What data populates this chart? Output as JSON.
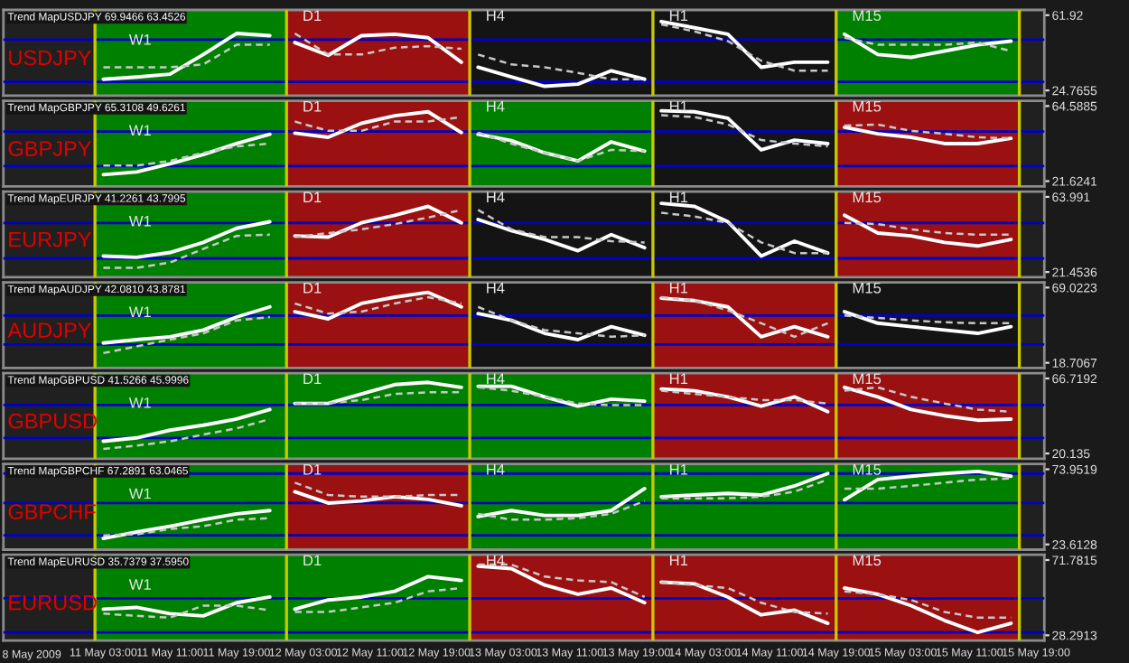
{
  "chart_data": [
    {
      "type": "line",
      "title": "USDJPY",
      "subtitle": "Trend MapUSDJPY 69.9466 63.4526",
      "tick_labels": "y",
      "x": [
        "2009-05-11T03:00",
        "2009-05-11T07:00",
        "2009-05-11T11:00",
        "2009-05-11T15:00",
        "2009-05-11T19:00",
        "2009-05-11T23:00",
        "2009-05-12T01:00",
        "2009-05-12T02:00",
        "2009-05-12T06:00",
        "2009-05-12T10:00",
        "2009-05-12T14:00",
        "2009-05-12T18:00",
        "2009-05-12T22:00",
        "2009-05-12T23:00",
        "2009-05-13T00:00",
        "2009-05-13T04:00",
        "2009-05-13T08:00",
        "2009-05-13T12:00",
        "2009-05-13T16:00",
        "2009-05-13T20:00",
        "2009-05-13T21:00",
        "2009-05-13T22:00",
        "2009-05-14T02:00",
        "2009-05-14T06:00",
        "2009-05-14T10:00",
        "2009-05-14T14:00",
        "2009-05-14T18:00",
        "2009-05-14T19:00",
        "2009-05-14T20:00",
        "2009-05-15T00:00",
        "2009-05-15T04:00",
        "2009-05-15T08:00",
        "2009-05-15T12:00",
        "2009-05-15T16:00"
      ],
      "xlim": [
        "2009-05-10T15:00",
        "2009-05-15T20:00"
      ],
      "ylim": [
        22.2,
        64.5
      ],
      "yticks": [
        24.7655,
        61.92
      ],
      "series": [
        {
          "color": "#ffffff",
          "line_style": "solid",
          "values": [
            30.3,
            31.4,
            32.8,
            42.5,
            52.9,
            51.8,
            null,
            48.4,
            42.1,
            51.8,
            52.5,
            50.8,
            38.7,
            null,
            36.2,
            31.4,
            26.8,
            27.9,
            34.5,
            30.3,
            null,
            58.8,
            55.7,
            52.5,
            36.2,
            38.7,
            38.7,
            null,
            52.5,
            42.5,
            41.1,
            44.2,
            47.3,
            49.1
          ]
        },
        {
          "color": "#c8c8c8",
          "line_style": "dashed",
          "values": [
            36.2,
            36.2,
            36.2,
            37.6,
            47.3,
            47.3,
            null,
            52.9,
            42.5,
            42.5,
            45.9,
            46.6,
            45.3,
            null,
            42.5,
            37.6,
            36.2,
            33.4,
            30.3,
            30.3,
            null,
            57.4,
            53.9,
            49.1,
            39.4,
            34.5,
            34.5,
            null,
            50.8,
            47.3,
            47.3,
            47.3,
            48.4,
            44.2
          ]
        }
      ],
      "bands": [
        {
          "axis": "x",
          "from": "2009-05-11T02:00",
          "to": "2009-05-12T01:00",
          "label": "W1",
          "color": "#008000"
        },
        {
          "axis": "x",
          "from": "2009-05-12T01:00",
          "to": "2009-05-12T23:00",
          "label": "D1",
          "color": "#9b1010"
        },
        {
          "axis": "x",
          "from": "2009-05-12T23:00",
          "to": "2009-05-13T21:00",
          "label": "H4",
          "color": "#141414"
        },
        {
          "axis": "x",
          "from": "2009-05-13T21:00",
          "to": "2009-05-14T19:00",
          "label": "H1",
          "color": "#141414"
        },
        {
          "axis": "x",
          "from": "2009-05-14T19:00",
          "to": "2009-05-15T17:00",
          "label": "M15",
          "color": "#008000"
        }
      ],
      "ref_lines": [
        {
          "axis": "y",
          "value": 49.8,
          "color": "#0000c8"
        },
        {
          "axis": "y",
          "value": 29.0,
          "color": "#0000c8"
        },
        {
          "axis": "x",
          "value": "2009-05-11T02:00",
          "color": "#c8c800"
        },
        {
          "axis": "x",
          "value": "2009-05-12T01:00",
          "color": "#c8c800"
        },
        {
          "axis": "x",
          "value": "2009-05-12T23:00",
          "color": "#c8c800"
        },
        {
          "axis": "x",
          "value": "2009-05-13T21:00",
          "color": "#c8c800"
        },
        {
          "axis": "x",
          "value": "2009-05-14T19:00",
          "color": "#c8c800"
        },
        {
          "axis": "x",
          "value": "2009-05-15T17:00",
          "color": "#c8c800"
        }
      ]
    },
    {
      "type": "line",
      "title": "GBPJPY",
      "subtitle": "Trend MapGBPJPY 65.3108 49.6261",
      "tick_labels": "y",
      "x": [
        "2009-05-11T03:00",
        "2009-05-11T07:00",
        "2009-05-11T11:00",
        "2009-05-11T15:00",
        "2009-05-11T19:00",
        "2009-05-11T23:00",
        "2009-05-12T01:00",
        "2009-05-12T02:00",
        "2009-05-12T06:00",
        "2009-05-12T10:00",
        "2009-05-12T14:00",
        "2009-05-12T18:00",
        "2009-05-12T22:00",
        "2009-05-12T23:00",
        "2009-05-13T00:00",
        "2009-05-13T04:00",
        "2009-05-13T08:00",
        "2009-05-13T12:00",
        "2009-05-13T16:00",
        "2009-05-13T20:00",
        "2009-05-13T21:00",
        "2009-05-13T22:00",
        "2009-05-14T02:00",
        "2009-05-14T06:00",
        "2009-05-14T10:00",
        "2009-05-14T14:00",
        "2009-05-14T18:00",
        "2009-05-14T19:00",
        "2009-05-14T20:00",
        "2009-05-15T00:00",
        "2009-05-15T04:00",
        "2009-05-15T08:00",
        "2009-05-15T12:00",
        "2009-05-15T16:00"
      ],
      "xlim": [
        "2009-05-10T15:00",
        "2009-05-15T20:00"
      ],
      "ylim": [
        18.6,
        67.6
      ],
      "yticks": [
        21.6241,
        64.5885
      ],
      "series": [
        {
          "color": "#ffffff",
          "line_style": "solid",
          "values": [
            25.3,
            26.9,
            31.5,
            36.8,
            43.1,
            48.4,
            null,
            49.1,
            46.7,
            54.7,
            59.0,
            61.3,
            49.4,
            null,
            48.4,
            44.8,
            37.8,
            33.2,
            44.1,
            38.8,
            null,
            61.9,
            61.3,
            57.6,
            39.5,
            45.1,
            43.1,
            null,
            52.4,
            48.7,
            46.7,
            43.1,
            43.1,
            46.1
          ]
        },
        {
          "color": "#c8c8c8",
          "line_style": "dashed",
          "values": [
            30.5,
            30.5,
            33.2,
            37.8,
            41.5,
            43.1,
            null,
            55.7,
            50.4,
            50.4,
            55.7,
            55.7,
            58.3,
            null,
            49.4,
            43.1,
            37.8,
            33.2,
            39.5,
            38.8,
            null,
            59.3,
            58.3,
            54.0,
            45.1,
            43.1,
            41.5,
            null,
            53.4,
            54.0,
            50.4,
            48.7,
            46.7,
            46.1
          ]
        }
      ],
      "bands": [
        {
          "axis": "x",
          "from": "2009-05-11T02:00",
          "to": "2009-05-12T01:00",
          "label": "W1",
          "color": "#008000"
        },
        {
          "axis": "x",
          "from": "2009-05-12T01:00",
          "to": "2009-05-12T23:00",
          "label": "D1",
          "color": "#9b1010"
        },
        {
          "axis": "x",
          "from": "2009-05-12T23:00",
          "to": "2009-05-13T21:00",
          "label": "H4",
          "color": "#008000"
        },
        {
          "axis": "x",
          "from": "2009-05-13T21:00",
          "to": "2009-05-14T19:00",
          "label": "H1",
          "color": "#141414"
        },
        {
          "axis": "x",
          "from": "2009-05-14T19:00",
          "to": "2009-05-15T17:00",
          "label": "M15",
          "color": "#9b1010"
        }
      ],
      "ref_lines": [
        {
          "axis": "y",
          "value": 50.0,
          "color": "#0000c8"
        },
        {
          "axis": "y",
          "value": 30.2,
          "color": "#0000c8"
        },
        {
          "axis": "x",
          "value": "2009-05-11T02:00",
          "color": "#c8c800"
        },
        {
          "axis": "x",
          "value": "2009-05-12T01:00",
          "color": "#c8c800"
        },
        {
          "axis": "x",
          "value": "2009-05-12T23:00",
          "color": "#c8c800"
        },
        {
          "axis": "x",
          "value": "2009-05-13T21:00",
          "color": "#c8c800"
        },
        {
          "axis": "x",
          "value": "2009-05-14T19:00",
          "color": "#c8c800"
        },
        {
          "axis": "x",
          "value": "2009-05-15T17:00",
          "color": "#c8c800"
        }
      ]
    },
    {
      "type": "line",
      "title": "EURJPY",
      "subtitle": "Trend MapEURJPY 41.2261 43.7995",
      "tick_labels": "y",
      "x": [
        "2009-05-11T03:00",
        "2009-05-11T07:00",
        "2009-05-11T11:00",
        "2009-05-11T15:00",
        "2009-05-11T19:00",
        "2009-05-11T23:00",
        "2009-05-12T01:00",
        "2009-05-12T02:00",
        "2009-05-12T06:00",
        "2009-05-12T10:00",
        "2009-05-12T14:00",
        "2009-05-12T18:00",
        "2009-05-12T22:00",
        "2009-05-12T23:00",
        "2009-05-13T00:00",
        "2009-05-13T04:00",
        "2009-05-13T08:00",
        "2009-05-13T12:00",
        "2009-05-13T16:00",
        "2009-05-13T20:00",
        "2009-05-13T21:00",
        "2009-05-13T22:00",
        "2009-05-14T02:00",
        "2009-05-14T06:00",
        "2009-05-14T10:00",
        "2009-05-14T14:00",
        "2009-05-14T18:00",
        "2009-05-14T19:00",
        "2009-05-14T20:00",
        "2009-05-15T00:00",
        "2009-05-15T04:00",
        "2009-05-15T08:00",
        "2009-05-15T12:00",
        "2009-05-15T16:00"
      ],
      "xlim": [
        "2009-05-10T15:00",
        "2009-05-15T20:00"
      ],
      "ylim": [
        18.5,
        67.0
      ],
      "yticks": [
        21.4536,
        63.991
      ],
      "series": [
        {
          "color": "#ffffff",
          "line_style": "solid",
          "values": [
            30.5,
            29.8,
            32.5,
            38.2,
            46.2,
            49.9,
            null,
            41.9,
            41.2,
            49.3,
            53.6,
            58.6,
            49.3,
            null,
            51.2,
            44.9,
            39.9,
            33.5,
            42.6,
            35.2,
            null,
            60.3,
            58.6,
            49.9,
            30.5,
            38.9,
            32.2,
            null,
            53.6,
            43.5,
            41.9,
            38.2,
            36.2,
            39.9
          ]
        },
        {
          "color": "#c8c8c8",
          "line_style": "dashed",
          "values": [
            23.8,
            23.8,
            26.8,
            34.5,
            41.9,
            42.6,
            null,
            41.2,
            43.5,
            45.6,
            48.6,
            52.3,
            56.6,
            null,
            56.6,
            45.6,
            41.2,
            41.2,
            38.9,
            38.2,
            null,
            55.0,
            52.9,
            49.3,
            38.2,
            32.2,
            32.2,
            null,
            49.3,
            48.6,
            45.6,
            43.5,
            42.6,
            42.6
          ]
        }
      ],
      "bands": [
        {
          "axis": "x",
          "from": "2009-05-11T02:00",
          "to": "2009-05-12T01:00",
          "label": "W1",
          "color": "#008000"
        },
        {
          "axis": "x",
          "from": "2009-05-12T01:00",
          "to": "2009-05-12T23:00",
          "label": "D1",
          "color": "#9b1010"
        },
        {
          "axis": "x",
          "from": "2009-05-12T23:00",
          "to": "2009-05-13T21:00",
          "label": "H4",
          "color": "#141414"
        },
        {
          "axis": "x",
          "from": "2009-05-13T21:00",
          "to": "2009-05-14T19:00",
          "label": "H1",
          "color": "#141414"
        },
        {
          "axis": "x",
          "from": "2009-05-14T19:00",
          "to": "2009-05-15T17:00",
          "label": "M15",
          "color": "#9b1010"
        }
      ],
      "ref_lines": [
        {
          "axis": "y",
          "value": 49.2,
          "color": "#0000c8"
        },
        {
          "axis": "y",
          "value": 29.2,
          "color": "#0000c8"
        },
        {
          "axis": "x",
          "value": "2009-05-11T02:00",
          "color": "#c8c800"
        },
        {
          "axis": "x",
          "value": "2009-05-12T01:00",
          "color": "#c8c800"
        },
        {
          "axis": "x",
          "value": "2009-05-12T23:00",
          "color": "#c8c800"
        },
        {
          "axis": "x",
          "value": "2009-05-13T21:00",
          "color": "#c8c800"
        },
        {
          "axis": "x",
          "value": "2009-05-14T19:00",
          "color": "#c8c800"
        },
        {
          "axis": "x",
          "value": "2009-05-15T17:00",
          "color": "#c8c800"
        }
      ]
    },
    {
      "type": "line",
      "title": "AUDJPY",
      "subtitle": "Trend MapAUDJPY 42.0810 43.8781",
      "tick_labels": "y",
      "x": [
        "2009-05-11T03:00",
        "2009-05-11T07:00",
        "2009-05-11T11:00",
        "2009-05-11T15:00",
        "2009-05-11T19:00",
        "2009-05-11T23:00",
        "2009-05-12T01:00",
        "2009-05-12T02:00",
        "2009-05-12T06:00",
        "2009-05-12T10:00",
        "2009-05-12T14:00",
        "2009-05-12T18:00",
        "2009-05-12T22:00",
        "2009-05-12T23:00",
        "2009-05-13T00:00",
        "2009-05-13T04:00",
        "2009-05-13T08:00",
        "2009-05-13T12:00",
        "2009-05-13T16:00",
        "2009-05-13T20:00",
        "2009-05-13T21:00",
        "2009-05-13T22:00",
        "2009-05-14T02:00",
        "2009-05-14T06:00",
        "2009-05-14T10:00",
        "2009-05-14T14:00",
        "2009-05-14T18:00",
        "2009-05-14T19:00",
        "2009-05-14T20:00",
        "2009-05-15T00:00",
        "2009-05-15T04:00",
        "2009-05-15T08:00",
        "2009-05-15T12:00",
        "2009-05-15T16:00"
      ],
      "xlim": [
        "2009-05-10T15:00",
        "2009-05-15T20:00"
      ],
      "ylim": [
        15.2,
        72.5
      ],
      "yticks": [
        18.7067,
        69.0223
      ],
      "series": [
        {
          "color": "#ffffff",
          "line_style": "solid",
          "values": [
            31.9,
            34.2,
            36.1,
            40.6,
            49.3,
            56.1,
            null,
            52.9,
            48.1,
            58.4,
            62.6,
            65.8,
            56.1,
            null,
            51.6,
            47.1,
            38.4,
            34.2,
            42.9,
            37.1,
            null,
            61.9,
            60.3,
            56.1,
            36.1,
            42.9,
            36.1,
            null,
            52.9,
            45.2,
            42.9,
            40.6,
            38.4,
            42.9
          ]
        },
        {
          "color": "#c8c8c8",
          "line_style": "dashed",
          "values": [
            25.2,
            29.7,
            34.2,
            38.4,
            47.1,
            49.3,
            null,
            58.4,
            51.6,
            52.9,
            58.4,
            62.6,
            58.4,
            null,
            56.1,
            47.1,
            40.6,
            38.4,
            36.1,
            37.1,
            null,
            62.6,
            60.3,
            53.8,
            45.2,
            36.1,
            45.2,
            null,
            50.3,
            48.7,
            47.1,
            45.8,
            45.2,
            45.2
          ]
        }
      ],
      "bands": [
        {
          "axis": "x",
          "from": "2009-05-11T02:00",
          "to": "2009-05-12T01:00",
          "label": "W1",
          "color": "#008000"
        },
        {
          "axis": "x",
          "from": "2009-05-12T01:00",
          "to": "2009-05-12T23:00",
          "label": "D1",
          "color": "#9b1010"
        },
        {
          "axis": "x",
          "from": "2009-05-12T23:00",
          "to": "2009-05-13T21:00",
          "label": "H4",
          "color": "#141414"
        },
        {
          "axis": "x",
          "from": "2009-05-13T21:00",
          "to": "2009-05-14T19:00",
          "label": "H1",
          "color": "#9b1010"
        },
        {
          "axis": "x",
          "from": "2009-05-14T19:00",
          "to": "2009-05-15T17:00",
          "label": "M15",
          "color": "#141414"
        }
      ],
      "ref_lines": [
        {
          "axis": "y",
          "value": 50.3,
          "color": "#0000c8"
        },
        {
          "axis": "y",
          "value": 31.0,
          "color": "#0000c8"
        },
        {
          "axis": "x",
          "value": "2009-05-11T02:00",
          "color": "#c8c800"
        },
        {
          "axis": "x",
          "value": "2009-05-12T01:00",
          "color": "#c8c800"
        },
        {
          "axis": "x",
          "value": "2009-05-12T23:00",
          "color": "#c8c800"
        },
        {
          "axis": "x",
          "value": "2009-05-13T21:00",
          "color": "#c8c800"
        },
        {
          "axis": "x",
          "value": "2009-05-14T19:00",
          "color": "#c8c800"
        },
        {
          "axis": "x",
          "value": "2009-05-15T17:00",
          "color": "#c8c800"
        }
      ]
    },
    {
      "type": "line",
      "title": "GBPUSD",
      "subtitle": "Trend MapGBPUSD 41.5266 45.9996",
      "tick_labels": "y",
      "x": [
        "2009-05-11T03:00",
        "2009-05-11T07:00",
        "2009-05-11T11:00",
        "2009-05-11T15:00",
        "2009-05-11T19:00",
        "2009-05-11T23:00",
        "2009-05-12T01:00",
        "2009-05-12T02:00",
        "2009-05-12T06:00",
        "2009-05-12T10:00",
        "2009-05-12T14:00",
        "2009-05-12T18:00",
        "2009-05-12T22:00",
        "2009-05-12T23:00",
        "2009-05-13T00:00",
        "2009-05-13T04:00",
        "2009-05-13T08:00",
        "2009-05-13T12:00",
        "2009-05-13T16:00",
        "2009-05-13T20:00",
        "2009-05-13T21:00",
        "2009-05-13T22:00",
        "2009-05-14T02:00",
        "2009-05-14T06:00",
        "2009-05-14T10:00",
        "2009-05-14T14:00",
        "2009-05-14T18:00",
        "2009-05-14T19:00",
        "2009-05-14T20:00",
        "2009-05-15T00:00",
        "2009-05-15T04:00",
        "2009-05-15T08:00",
        "2009-05-15T12:00",
        "2009-05-15T16:00"
      ],
      "xlim": [
        "2009-05-10T15:00",
        "2009-05-15T20:00"
      ],
      "ylim": [
        16.8,
        70.0
      ],
      "yticks": [
        20.135,
        66.7192
      ],
      "series": [
        {
          "color": "#ffffff",
          "line_style": "solid",
          "values": [
            27.7,
            29.8,
            34.6,
            37.7,
            41.5,
            47.4,
            null,
            51.2,
            51.2,
            57.1,
            62.9,
            64.3,
            61.2,
            null,
            61.9,
            61.9,
            55.3,
            49.5,
            53.9,
            52.6,
            null,
            60.2,
            59.1,
            55.3,
            49.5,
            55.3,
            46.1,
            null,
            61.2,
            55.3,
            47.4,
            43.6,
            40.8,
            41.5
          ]
        },
        {
          "color": "#c8c8c8",
          "line_style": "dashed",
          "values": [
            22.9,
            25.0,
            27.7,
            31.9,
            35.7,
            41.5,
            null,
            51.2,
            51.2,
            53.3,
            57.1,
            58.1,
            58.1,
            null,
            61.2,
            59.1,
            55.3,
            51.2,
            50.1,
            50.1,
            null,
            59.1,
            57.1,
            55.3,
            53.3,
            53.3,
            51.2,
            null,
            59.1,
            61.2,
            55.3,
            51.2,
            47.4,
            46.1
          ]
        }
      ],
      "bands": [
        {
          "axis": "x",
          "from": "2009-05-11T02:00",
          "to": "2009-05-12T01:00",
          "label": "W1",
          "color": "#008000"
        },
        {
          "axis": "x",
          "from": "2009-05-12T01:00",
          "to": "2009-05-12T23:00",
          "label": "D1",
          "color": "#008000"
        },
        {
          "axis": "x",
          "from": "2009-05-12T23:00",
          "to": "2009-05-13T21:00",
          "label": "H4",
          "color": "#008000"
        },
        {
          "axis": "x",
          "from": "2009-05-13T21:00",
          "to": "2009-05-14T19:00",
          "label": "H1",
          "color": "#9b1010"
        },
        {
          "axis": "x",
          "from": "2009-05-14T19:00",
          "to": "2009-05-15T17:00",
          "label": "M15",
          "color": "#9b1010"
        }
      ],
      "ref_lines": [
        {
          "axis": "y",
          "value": 50.2,
          "color": "#0000c8"
        },
        {
          "axis": "y",
          "value": 29.8,
          "color": "#0000c8"
        },
        {
          "axis": "x",
          "value": "2009-05-11T02:00",
          "color": "#c8c800"
        },
        {
          "axis": "x",
          "value": "2009-05-12T01:00",
          "color": "#c8c800"
        },
        {
          "axis": "x",
          "value": "2009-05-12T23:00",
          "color": "#c8c800"
        },
        {
          "axis": "x",
          "value": "2009-05-13T21:00",
          "color": "#c8c800"
        },
        {
          "axis": "x",
          "value": "2009-05-14T19:00",
          "color": "#c8c800"
        },
        {
          "axis": "x",
          "value": "2009-05-15T17:00",
          "color": "#c8c800"
        }
      ]
    },
    {
      "type": "line",
      "title": "GBPCHF",
      "subtitle": "Trend MapGBPCHF 67.2891 63.0465",
      "tick_labels": "y",
      "x": [
        "2009-05-11T03:00",
        "2009-05-11T07:00",
        "2009-05-11T11:00",
        "2009-05-11T15:00",
        "2009-05-11T19:00",
        "2009-05-11T23:00",
        "2009-05-12T01:00",
        "2009-05-12T02:00",
        "2009-05-12T06:00",
        "2009-05-12T10:00",
        "2009-05-12T14:00",
        "2009-05-12T18:00",
        "2009-05-12T22:00",
        "2009-05-12T23:00",
        "2009-05-13T00:00",
        "2009-05-13T04:00",
        "2009-05-13T08:00",
        "2009-05-13T12:00",
        "2009-05-13T16:00",
        "2009-05-13T20:00",
        "2009-05-13T21:00",
        "2009-05-13T22:00",
        "2009-05-14T02:00",
        "2009-05-14T06:00",
        "2009-05-14T10:00",
        "2009-05-14T14:00",
        "2009-05-14T18:00",
        "2009-05-14T19:00",
        "2009-05-14T20:00",
        "2009-05-15T00:00",
        "2009-05-15T04:00",
        "2009-05-15T08:00",
        "2009-05-15T12:00",
        "2009-05-15T16:00"
      ],
      "xlim": [
        "2009-05-10T15:00",
        "2009-05-15T20:00"
      ],
      "ylim": [
        20.1,
        77.5
      ],
      "yticks": [
        23.6128,
        73.9519
      ],
      "series": [
        {
          "color": "#ffffff",
          "line_style": "solid",
          "values": [
            27.6,
            31.9,
            35.8,
            40.2,
            44.1,
            46.3,
            null,
            58.9,
            51.3,
            52.7,
            55.6,
            53.8,
            49.5,
            null,
            42.3,
            46.3,
            43.0,
            43.0,
            46.3,
            61.0,
            null,
            55.6,
            56.7,
            57.8,
            56.7,
            62.8,
            71.1,
            null,
            53.5,
            67.1,
            69.3,
            71.1,
            72.5,
            69.3
          ]
        },
        {
          "color": "#c8c8c8",
          "line_style": "dashed",
          "values": [
            29.7,
            30.4,
            34.0,
            35.8,
            40.2,
            41.2,
            null,
            65.0,
            56.7,
            55.6,
            55.6,
            56.7,
            56.7,
            null,
            44.1,
            40.2,
            40.2,
            41.2,
            44.1,
            52.7,
            null,
            54.5,
            54.5,
            54.5,
            55.6,
            58.9,
            67.1,
            null,
            61.0,
            61.0,
            62.8,
            65.0,
            67.1,
            67.8
          ]
        }
      ],
      "bands": [
        {
          "axis": "x",
          "from": "2009-05-11T02:00",
          "to": "2009-05-12T01:00",
          "label": "W1",
          "color": "#008000"
        },
        {
          "axis": "x",
          "from": "2009-05-12T01:00",
          "to": "2009-05-12T23:00",
          "label": "D1",
          "color": "#9b1010"
        },
        {
          "axis": "x",
          "from": "2009-05-12T23:00",
          "to": "2009-05-13T21:00",
          "label": "H4",
          "color": "#008000"
        },
        {
          "axis": "x",
          "from": "2009-05-13T21:00",
          "to": "2009-05-14T19:00",
          "label": "H1",
          "color": "#008000"
        },
        {
          "axis": "x",
          "from": "2009-05-14T19:00",
          "to": "2009-05-15T17:00",
          "label": "M15",
          "color": "#008000"
        }
      ],
      "ref_lines": [
        {
          "axis": "y",
          "value": 71.1,
          "color": "#0000c8"
        },
        {
          "axis": "y",
          "value": 51.3,
          "color": "#0000c8"
        },
        {
          "axis": "y",
          "value": 29.7,
          "color": "#0000c8"
        },
        {
          "axis": "x",
          "value": "2009-05-11T02:00",
          "color": "#c8c800"
        },
        {
          "axis": "x",
          "value": "2009-05-12T01:00",
          "color": "#c8c800"
        },
        {
          "axis": "x",
          "value": "2009-05-12T23:00",
          "color": "#c8c800"
        },
        {
          "axis": "x",
          "value": "2009-05-13T21:00",
          "color": "#c8c800"
        },
        {
          "axis": "x",
          "value": "2009-05-14T19:00",
          "color": "#c8c800"
        },
        {
          "axis": "x",
          "value": "2009-05-15T17:00",
          "color": "#c8c800"
        }
      ]
    },
    {
      "type": "line",
      "title": "EURUSD",
      "subtitle": "Trend MapEURUSD 35.7379 37.5950",
      "annotations": [
        "8 May 2009"
      ],
      "x": [
        "2009-05-11T03:00",
        "2009-05-11T07:00",
        "2009-05-11T11:00",
        "2009-05-11T15:00",
        "2009-05-11T19:00",
        "2009-05-11T23:00",
        "2009-05-12T01:00",
        "2009-05-12T02:00",
        "2009-05-12T06:00",
        "2009-05-12T10:00",
        "2009-05-12T14:00",
        "2009-05-12T18:00",
        "2009-05-12T22:00",
        "2009-05-12T23:00",
        "2009-05-13T00:00",
        "2009-05-13T04:00",
        "2009-05-13T08:00",
        "2009-05-13T12:00",
        "2009-05-13T16:00",
        "2009-05-13T20:00",
        "2009-05-13T21:00",
        "2009-05-13T22:00",
        "2009-05-14T02:00",
        "2009-05-14T06:00",
        "2009-05-14T10:00",
        "2009-05-14T14:00",
        "2009-05-14T18:00",
        "2009-05-14T19:00",
        "2009-05-14T20:00",
        "2009-05-15T00:00",
        "2009-05-15T04:00",
        "2009-05-15T08:00",
        "2009-05-15T12:00",
        "2009-05-15T16:00"
      ],
      "xlim": [
        "2009-05-10T15:00",
        "2009-05-15T20:00"
      ],
      "ylim": [
        25.3,
        74.8
      ],
      "yticks": [
        28.2913,
        71.7815
      ],
      "xticks": [
        {
          "value": "2009-05-11T03:00",
          "label": "11 May 03:00"
        },
        {
          "value": "2009-05-11T11:00",
          "label": "11 May 11:00"
        },
        {
          "value": "2009-05-11T19:00",
          "label": "11 May 19:00"
        },
        {
          "value": "2009-05-12T03:00",
          "label": "12 May 03:00"
        },
        {
          "value": "2009-05-12T11:00",
          "label": "12 May 11:00"
        },
        {
          "value": "2009-05-12T19:00",
          "label": "12 May 19:00"
        },
        {
          "value": "2009-05-13T03:00",
          "label": "13 May 03:00"
        },
        {
          "value": "2009-05-13T11:00",
          "label": "13 May 11:00"
        },
        {
          "value": "2009-05-13T19:00",
          "label": "13 May 19:00"
        },
        {
          "value": "2009-05-14T03:00",
          "label": "14 May 03:00"
        },
        {
          "value": "2009-05-14T11:00",
          "label": "14 May 11:00"
        },
        {
          "value": "2009-05-14T19:00",
          "label": "14 May 19:00"
        },
        {
          "value": "2009-05-15T03:00",
          "label": "15 May 03:00"
        },
        {
          "value": "2009-05-15T11:00",
          "label": "15 May 11:00"
        },
        {
          "value": "2009-05-15T19:00",
          "label": "15 May 19:00"
        }
      ],
      "series": [
        {
          "color": "#ffffff",
          "line_style": "solid",
          "values": [
            43.4,
            44.4,
            40.8,
            39.5,
            47.1,
            50.4,
            null,
            43.4,
            48.7,
            50.4,
            53.7,
            62.2,
            60.0,
            null,
            68.2,
            66.8,
            57.3,
            52.0,
            55.6,
            47.1,
            null,
            59.0,
            58.0,
            50.4,
            40.1,
            42.8,
            35.2,
            null,
            55.6,
            52.0,
            45.4,
            36.9,
            29.9,
            35.2
          ]
        },
        {
          "color": "#c8c8c8",
          "line_style": "dashed",
          "values": [
            40.8,
            39.5,
            38.5,
            45.4,
            45.4,
            42.8,
            null,
            41.8,
            41.8,
            44.4,
            47.1,
            53.7,
            55.6,
            null,
            69.1,
            69.1,
            62.2,
            60.0,
            59.0,
            50.4,
            null,
            59.0,
            57.3,
            55.6,
            47.1,
            41.8,
            40.8,
            null,
            53.7,
            52.0,
            48.7,
            41.8,
            38.5,
            38.5
          ]
        }
      ],
      "bands": [
        {
          "axis": "x",
          "from": "2009-05-11T02:00",
          "to": "2009-05-12T01:00",
          "label": "W1",
          "color": "#008000"
        },
        {
          "axis": "x",
          "from": "2009-05-12T01:00",
          "to": "2009-05-12T23:00",
          "label": "D1",
          "color": "#008000"
        },
        {
          "axis": "x",
          "from": "2009-05-12T23:00",
          "to": "2009-05-13T21:00",
          "label": "H4",
          "color": "#9b1010"
        },
        {
          "axis": "x",
          "from": "2009-05-13T21:00",
          "to": "2009-05-14T19:00",
          "label": "H1",
          "color": "#9b1010"
        },
        {
          "axis": "x",
          "from": "2009-05-14T19:00",
          "to": "2009-05-15T17:00",
          "label": "M15",
          "color": "#9b1010"
        }
      ],
      "ref_lines": [
        {
          "axis": "y",
          "value": 49.7,
          "color": "#0000c8"
        },
        {
          "axis": "y",
          "value": 29.9,
          "color": "#0000c8"
        },
        {
          "axis": "x",
          "value": "2009-05-11T02:00",
          "color": "#c8c800"
        },
        {
          "axis": "x",
          "value": "2009-05-12T01:00",
          "color": "#c8c800"
        },
        {
          "axis": "x",
          "value": "2009-05-12T23:00",
          "color": "#c8c800"
        },
        {
          "axis": "x",
          "value": "2009-05-13T21:00",
          "color": "#c8c800"
        },
        {
          "axis": "x",
          "value": "2009-05-14T19:00",
          "color": "#c8c800"
        },
        {
          "axis": "x",
          "value": "2009-05-15T17:00",
          "color": "#c8c800"
        }
      ]
    }
  ]
}
